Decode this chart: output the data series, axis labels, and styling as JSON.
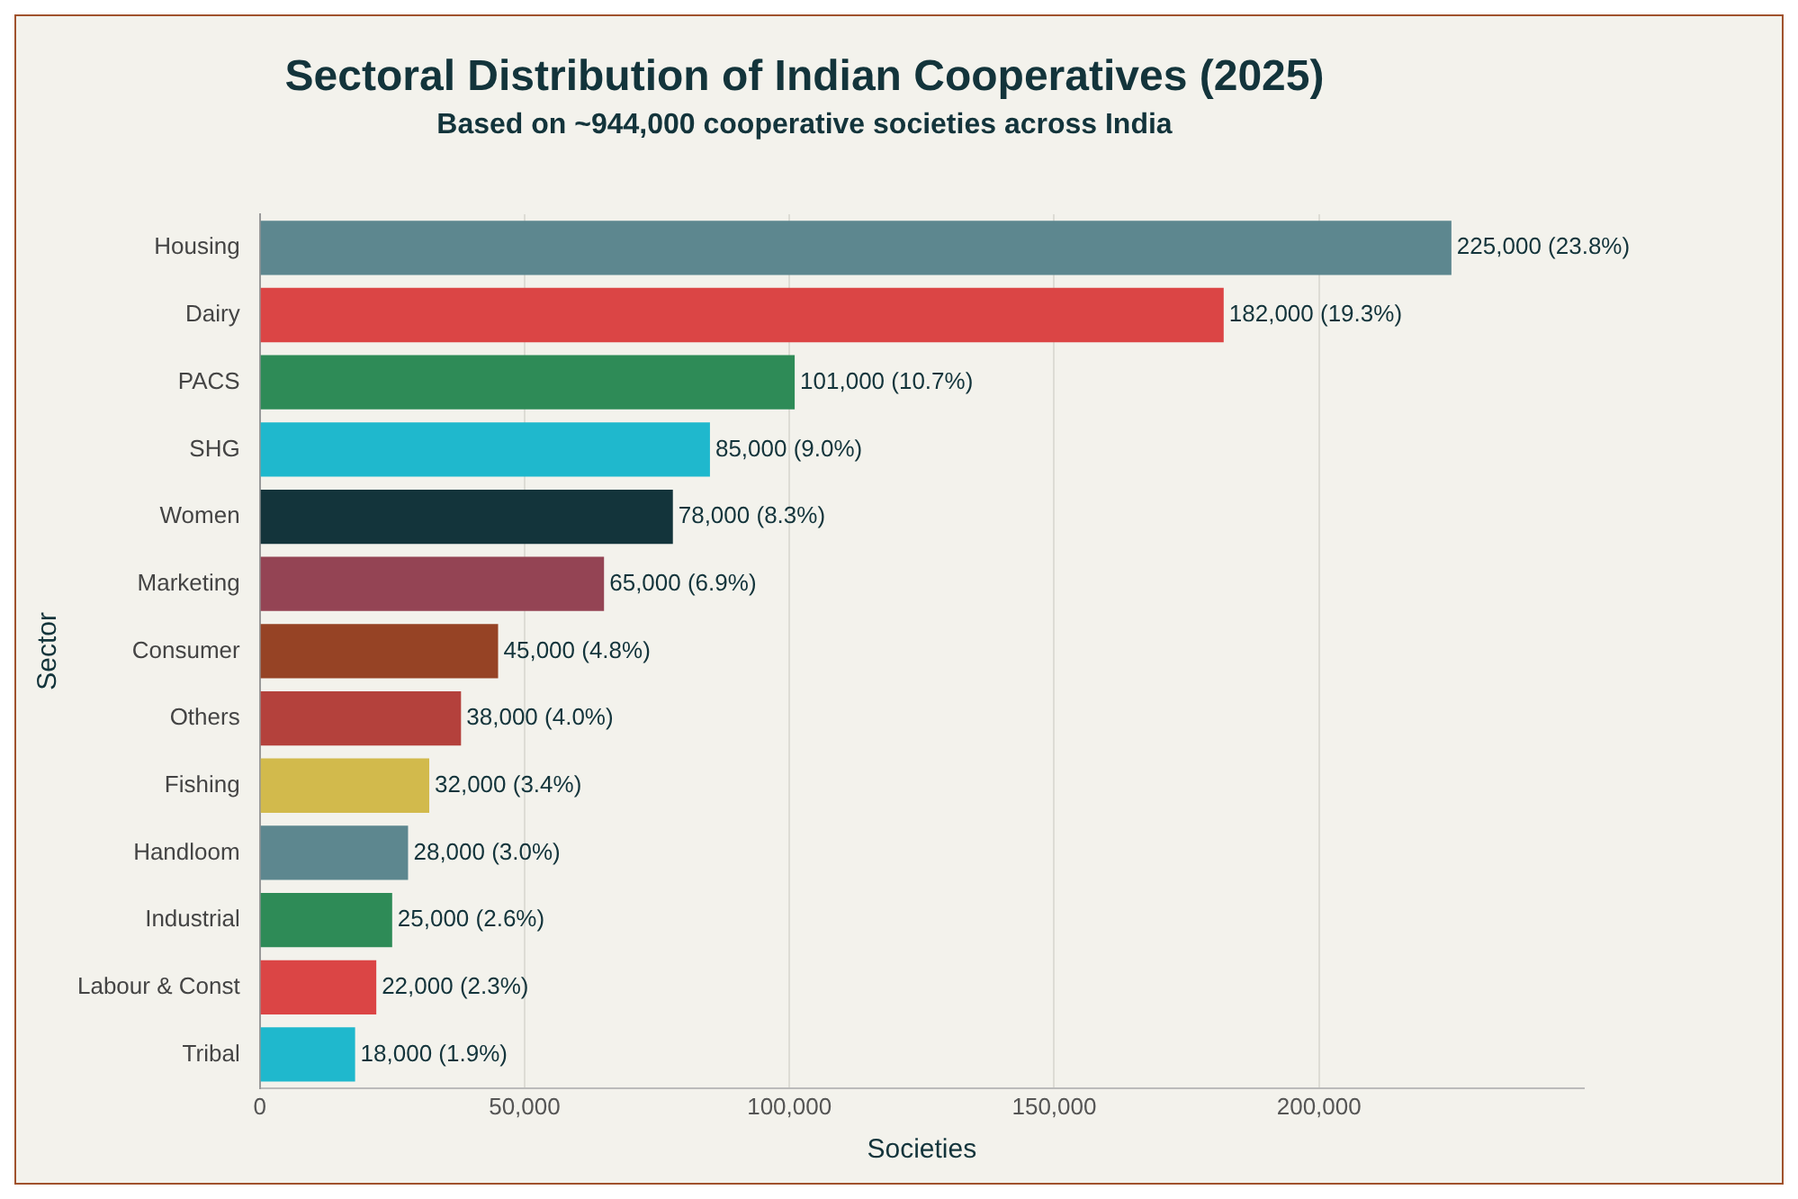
{
  "chart_data": {
    "type": "bar",
    "orientation": "horizontal",
    "title": "Sectoral Distribution of Indian Cooperatives (2025)",
    "subtitle": "Based on ~944,000 cooperative societies across India",
    "xlabel": "Societies",
    "ylabel": "Sector",
    "categories": [
      "Housing",
      "Dairy",
      "PACS",
      "SHG",
      "Women",
      "Marketing",
      "Consumer",
      "Others",
      "Fishing",
      "Handloom",
      "Industrial",
      "Labour & Const",
      "Tribal"
    ],
    "values": [
      225000,
      182000,
      101000,
      85000,
      78000,
      65000,
      45000,
      38000,
      32000,
      28000,
      25000,
      22000,
      18000
    ],
    "colors": [
      "#5d878f",
      "#db4545",
      "#2e8b57",
      "#1fb8cd",
      "#13343b",
      "#944454",
      "#964325",
      "#b4413c",
      "#d2ba4c",
      "#5d878f",
      "#2e8b57",
      "#db4545",
      "#1fb8cd"
    ],
    "value_labels": [
      "225,000 (23.8%)",
      "182,000 (19.3%)",
      "101,000 (10.7%)",
      "85,000 (9.0%)",
      "78,000 (8.3%)",
      "65,000 (6.9%)",
      "45,000 (4.8%)",
      "38,000 (4.0%)",
      "32,000 (3.4%)",
      "28,000 (3.0%)",
      "25,000 (2.6%)",
      "22,000 (2.3%)",
      "18,000 (1.9%)"
    ],
    "xlim": [
      0,
      250000
    ],
    "xticks": [
      0,
      {
        "value": 50000,
        "label": "50,000"
      },
      {
        "value": 100000,
        "label": "100,000"
      },
      {
        "value": 150000,
        "label": "150,000"
      },
      {
        "value": 200000,
        "label": "200,000"
      }
    ],
    "grid": "x",
    "legend": false
  }
}
